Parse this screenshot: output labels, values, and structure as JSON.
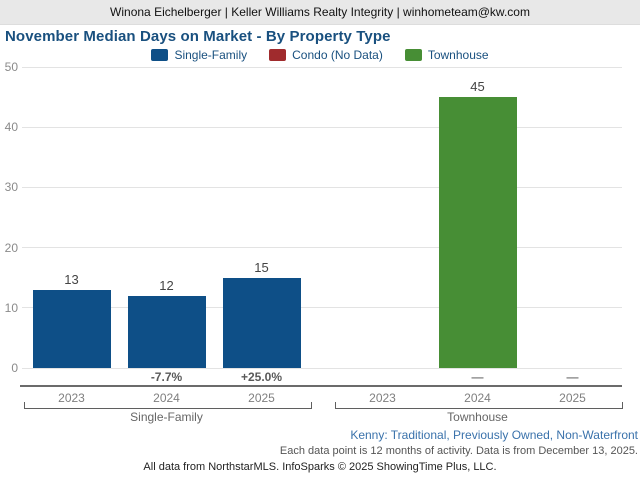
{
  "header": {
    "text": "Winona Eichelberger | Keller Williams Realty Integrity | winhometeam@kw.com"
  },
  "title": "November Median Days on Market - By Property Type",
  "legend": [
    {
      "label": "Single-Family",
      "color": "#0e4f87"
    },
    {
      "label": "Condo (No Data)",
      "color": "#a02b2d"
    },
    {
      "label": "Townhouse",
      "color": "#478e35"
    }
  ],
  "chart_data": {
    "type": "bar",
    "title": "November Median Days on Market - By Property Type",
    "ylim": [
      0,
      50
    ],
    "yticks": [
      0,
      10,
      20,
      30,
      40,
      50
    ],
    "grid": true,
    "legend_position": "top",
    "categories": [
      "2023",
      "2024",
      "2025"
    ],
    "series": [
      {
        "name": "Single-Family",
        "color": "#0e4f87",
        "values": [
          13,
          12,
          15
        ],
        "pct_change": [
          "",
          "-7.7%",
          "+25.0%"
        ]
      },
      {
        "name": "Condo (No Data)",
        "color": "#a02b2d",
        "values": [
          null,
          null,
          null
        ],
        "pct_change": [
          "",
          "",
          ""
        ]
      },
      {
        "name": "Townhouse",
        "color": "#478e35",
        "values": [
          null,
          45,
          null
        ],
        "pct_change": [
          "",
          "—",
          "—"
        ]
      }
    ]
  },
  "footer": {
    "filters": "Kenny: Traditional, Previously Owned, Non-Waterfront",
    "data_note": "Each data point is 12 months of activity. Data is from December 13, 2025.",
    "attribution": "All data from NorthstarMLS. InfoSparks © 2025 ShowingTime Plus, LLC."
  }
}
